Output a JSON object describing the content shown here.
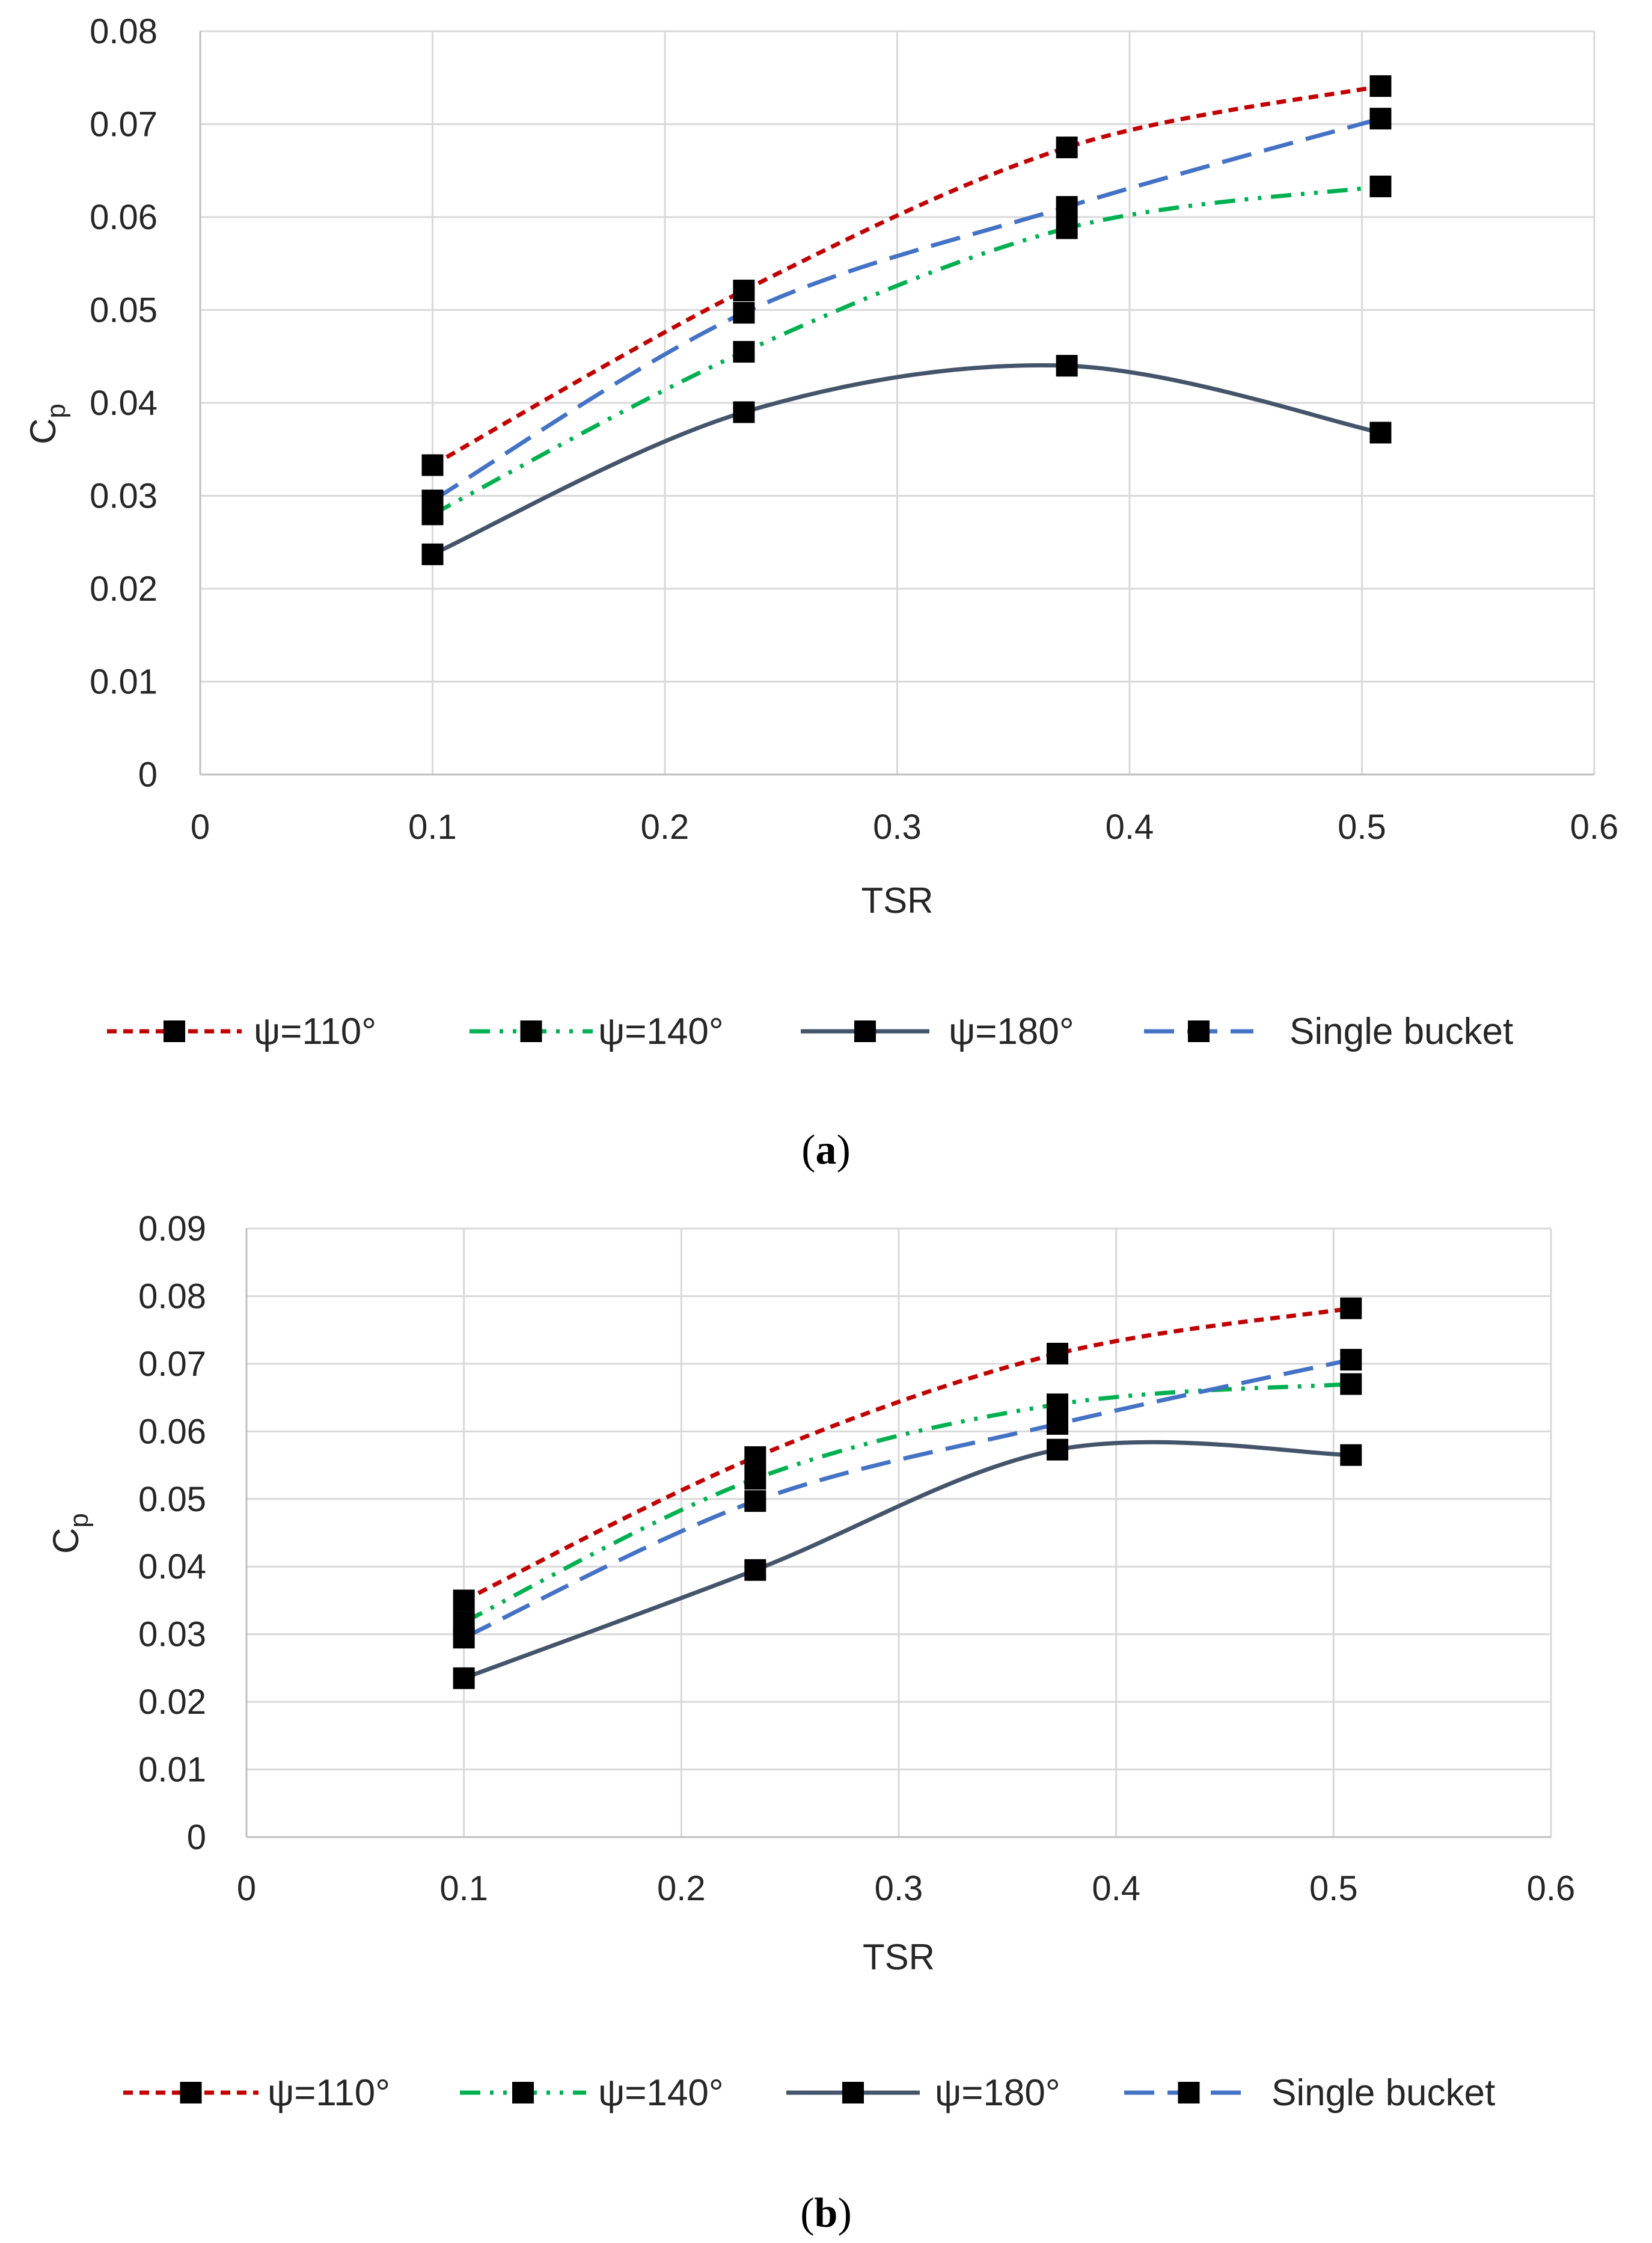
{
  "figure": {
    "captions": [
      "(a)",
      "(b)"
    ]
  },
  "chart_data": [
    {
      "type": "line",
      "panel": "a",
      "caption": "(a)",
      "xlabel": "TSR",
      "ylabel_main": "C",
      "ylabel_sub": "p",
      "xlim": [
        0,
        0.6
      ],
      "ylim": [
        0,
        0.08
      ],
      "xticks": [
        0,
        0.1,
        0.2,
        0.3,
        0.4,
        0.5,
        0.6
      ],
      "xtick_labels": [
        "0",
        "0.1",
        "0.2",
        "0.3",
        "0.4",
        "0.5",
        "0.6"
      ],
      "yticks": [
        0,
        0.01,
        0.02,
        0.03,
        0.04,
        0.05,
        0.06,
        0.07,
        0.08
      ],
      "ytick_labels": [
        "0",
        "0.01",
        "0.02",
        "0.03",
        "0.04",
        "0.05",
        "0.06",
        "0.07",
        "0.08"
      ],
      "grid": true,
      "legend_position": "bottom",
      "series": [
        {
          "name": "ψ=110°",
          "color": "#C00000",
          "dash": "short-dash",
          "x": [
            0.1,
            0.234,
            0.373,
            0.508
          ],
          "values": [
            0.0333,
            0.0521,
            0.0675,
            0.0741
          ]
        },
        {
          "name": "ψ=140°",
          "color": "#00B050",
          "dash": "dash-dot-dot",
          "x": [
            0.1,
            0.234,
            0.373,
            0.508
          ],
          "values": [
            0.028,
            0.0455,
            0.0588,
            0.0633
          ]
        },
        {
          "name": "ψ=180°",
          "color": "#44546A",
          "dash": "solid",
          "x": [
            0.1,
            0.234,
            0.373,
            0.508
          ],
          "values": [
            0.0237,
            0.039,
            0.044,
            0.0368
          ]
        },
        {
          "name": "Single bucket",
          "color": "#4472C4",
          "dash": "long-dash",
          "x": [
            0.1,
            0.234,
            0.373,
            0.508
          ],
          "values": [
            0.0295,
            0.0497,
            0.0611,
            0.0706
          ]
        }
      ]
    },
    {
      "type": "line",
      "panel": "b",
      "caption": "(b)",
      "xlabel": "TSR",
      "ylabel_main": "C",
      "ylabel_sub": "p",
      "xlim": [
        0,
        0.6
      ],
      "ylim": [
        0,
        0.09
      ],
      "xticks": [
        0,
        0.1,
        0.2,
        0.3,
        0.4,
        0.5,
        0.6
      ],
      "xtick_labels": [
        "0",
        "0.1",
        "0.2",
        "0.3",
        "0.4",
        "0.5",
        "0.6"
      ],
      "yticks": [
        0,
        0.01,
        0.02,
        0.03,
        0.04,
        0.05,
        0.06,
        0.07,
        0.08,
        0.09
      ],
      "ytick_labels": [
        "0",
        "0.01",
        "0.02",
        "0.03",
        "0.04",
        "0.05",
        "0.06",
        "0.07",
        "0.08",
        "0.09"
      ],
      "grid": true,
      "legend_position": "bottom",
      "series": [
        {
          "name": "ψ=110°",
          "color": "#C00000",
          "dash": "short-dash",
          "x": [
            0.1,
            0.234,
            0.373,
            0.508
          ],
          "values": [
            0.035,
            0.0562,
            0.0715,
            0.0782
          ]
        },
        {
          "name": "ψ=140°",
          "color": "#00B050",
          "dash": "dash-dot-dot",
          "x": [
            0.1,
            0.234,
            0.373,
            0.508
          ],
          "values": [
            0.0318,
            0.053,
            0.064,
            0.067
          ]
        },
        {
          "name": "ψ=180°",
          "color": "#44546A",
          "dash": "solid",
          "x": [
            0.1,
            0.234,
            0.373,
            0.508
          ],
          "values": [
            0.0235,
            0.0395,
            0.0573,
            0.0565
          ]
        },
        {
          "name": "Single bucket",
          "color": "#4472C4",
          "dash": "long-dash",
          "x": [
            0.1,
            0.234,
            0.373,
            0.508
          ],
          "values": [
            0.0295,
            0.0497,
            0.0611,
            0.0706
          ]
        }
      ]
    }
  ]
}
